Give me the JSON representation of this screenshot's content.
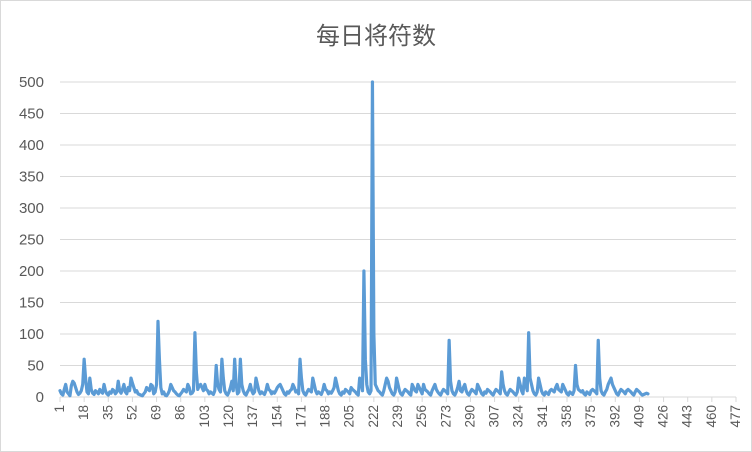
{
  "chart_data": {
    "type": "line",
    "title": "每日将符数",
    "xlabel": "",
    "ylabel": "",
    "xlim": [
      1,
      477
    ],
    "ylim": [
      0,
      500
    ],
    "y_ticks": [
      "0",
      "50",
      "100",
      "150",
      "200",
      "250",
      "300",
      "350",
      "400",
      "450",
      "500"
    ],
    "x_ticks": [
      "1",
      "18",
      "35",
      "52",
      "69",
      "86",
      "103",
      "120",
      "137",
      "154",
      "171",
      "188",
      "205",
      "222",
      "239",
      "256",
      "273",
      "290",
      "307",
      "324",
      "341",
      "358",
      "375",
      "392",
      "409",
      "426",
      "443",
      "460",
      "477"
    ],
    "grid": "horizontal",
    "legend": "none",
    "line_color": "#5b9bd5",
    "series": [
      {
        "values": [
          10,
          5,
          3,
          12,
          20,
          8,
          5,
          2,
          18,
          25,
          22,
          15,
          8,
          4,
          6,
          10,
          20,
          60,
          30,
          8,
          5,
          30,
          12,
          6,
          4,
          10,
          8,
          5,
          12,
          8,
          6,
          20,
          10,
          5,
          3,
          8,
          6,
          12,
          10,
          5,
          8,
          25,
          10,
          6,
          12,
          20,
          8,
          5,
          15,
          10,
          30,
          22,
          15,
          8,
          10,
          5,
          4,
          3,
          2,
          5,
          8,
          15,
          12,
          10,
          20,
          18,
          5,
          8,
          20,
          120,
          60,
          15,
          5,
          8,
          3,
          2,
          5,
          10,
          20,
          15,
          10,
          8,
          5,
          3,
          2,
          5,
          8,
          12,
          10,
          8,
          20,
          15,
          5,
          6,
          10,
          102,
          40,
          12,
          18,
          20,
          15,
          10,
          20,
          12,
          10,
          5,
          8,
          6,
          4,
          10,
          50,
          20,
          12,
          8,
          60,
          30,
          10,
          5,
          3,
          8,
          15,
          25,
          10,
          60,
          20,
          5,
          8,
          60,
          20,
          10,
          5,
          3,
          8,
          12,
          20,
          10,
          5,
          8,
          30,
          20,
          10,
          5,
          8,
          6,
          4,
          10,
          20,
          12,
          10,
          5,
          8,
          6,
          10,
          15,
          18,
          20,
          15,
          10,
          5,
          3,
          8,
          6,
          10,
          12,
          20,
          15,
          8,
          10,
          5,
          60,
          30,
          10,
          5,
          3,
          8,
          12,
          10,
          8,
          30,
          20,
          10,
          5,
          8,
          6,
          4,
          10,
          20,
          12,
          10,
          5,
          8,
          6,
          10,
          15,
          30,
          20,
          10,
          5,
          3,
          8,
          6,
          12,
          10,
          8,
          5,
          15,
          12,
          10,
          8,
          5,
          3,
          30,
          25,
          10,
          200,
          60,
          20,
          8,
          5,
          10,
          500,
          100,
          20,
          15,
          10,
          8,
          5,
          3,
          10,
          20,
          30,
          25,
          15,
          10,
          5,
          3,
          8,
          30,
          20,
          10,
          5,
          3,
          8,
          12,
          10,
          8,
          5,
          3,
          20,
          15,
          10,
          8,
          20,
          15,
          10,
          5,
          20,
          12,
          10,
          8,
          5,
          3,
          10,
          15,
          20,
          12,
          8,
          5,
          3,
          8,
          12,
          10,
          8,
          5,
          90,
          25,
          10,
          5,
          3,
          8,
          15,
          25,
          10,
          8,
          15,
          20,
          10,
          5,
          3,
          8,
          12,
          10,
          8,
          5,
          20,
          15,
          10,
          5,
          3,
          8,
          6,
          12,
          10,
          8,
          5,
          3,
          8,
          12,
          10,
          8,
          5,
          40,
          20,
          10,
          5,
          3,
          8,
          12,
          10,
          8,
          5,
          3,
          8,
          30,
          20,
          10,
          5,
          30,
          20,
          10,
          102,
          30,
          20,
          10,
          5,
          3,
          8,
          30,
          20,
          10,
          5,
          3,
          8,
          6,
          4,
          10,
          12,
          10,
          8,
          15,
          20,
          12,
          10,
          8,
          20,
          15,
          10,
          5,
          3,
          8,
          6,
          4,
          10,
          50,
          20,
          12,
          10,
          8,
          10,
          5,
          3,
          8,
          6,
          4,
          10,
          12,
          10,
          8,
          5,
          90,
          30,
          10,
          5,
          3,
          8,
          12,
          20,
          25,
          30,
          20,
          15,
          10,
          5,
          3,
          8,
          12,
          10,
          8,
          5,
          10,
          12,
          10,
          8,
          5,
          3,
          8,
          12,
          10,
          8,
          5,
          3,
          4,
          5,
          6,
          5
        ]
      }
    ]
  }
}
